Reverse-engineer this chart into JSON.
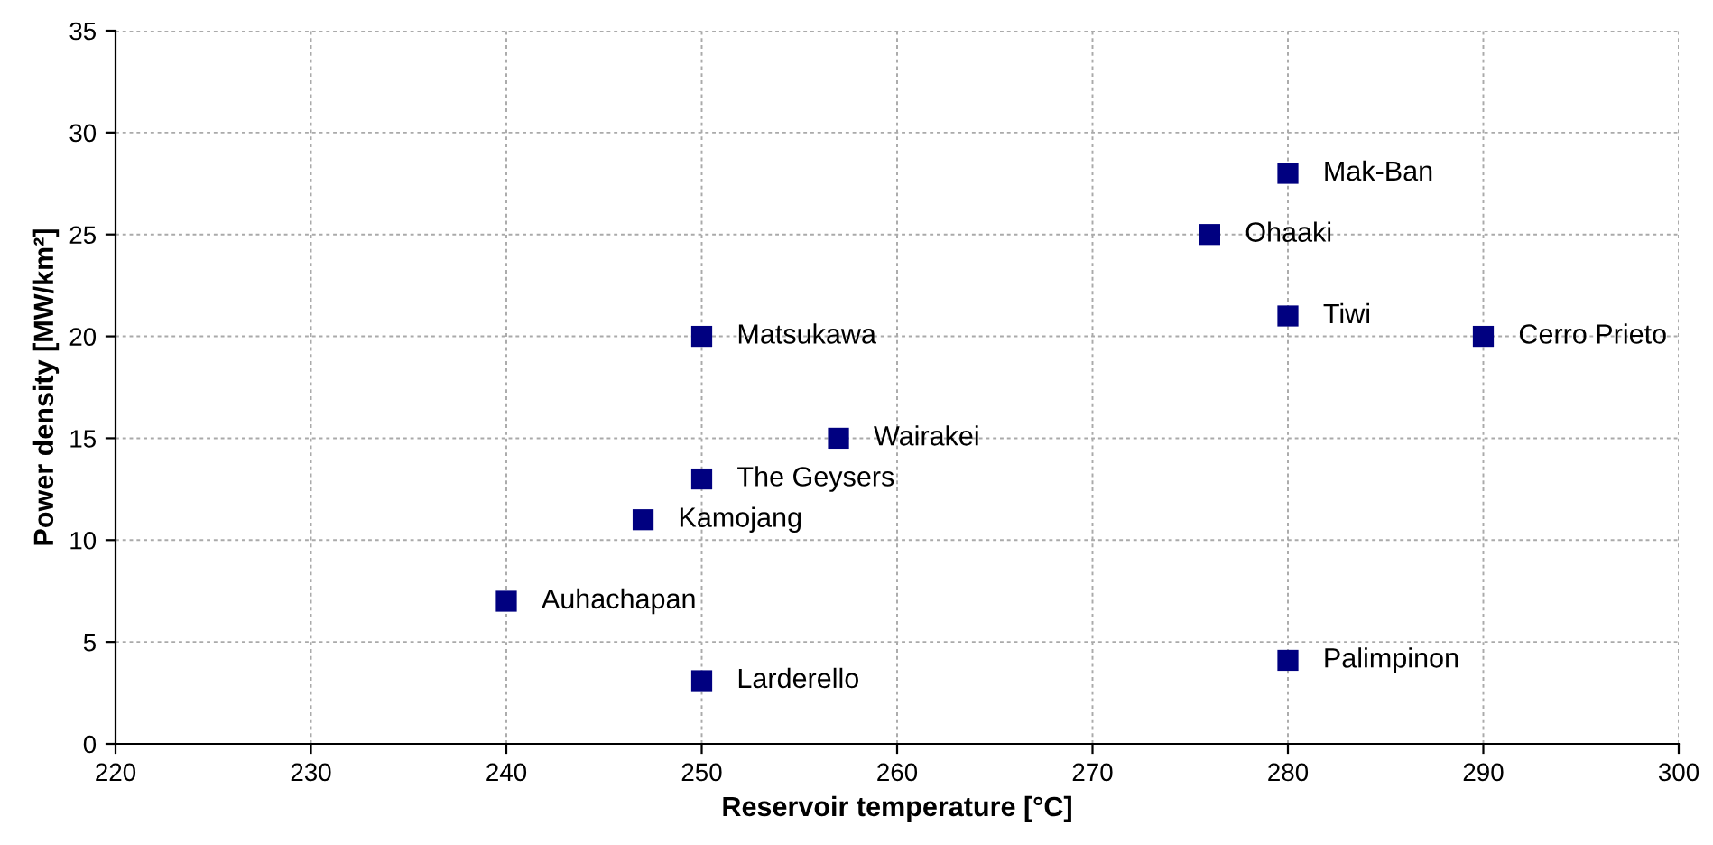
{
  "chart_data": {
    "type": "scatter",
    "xlabel": "Reservoir temperature [°C]",
    "ylabel": "Power density [MW/km²]",
    "series": [
      {
        "color": "#000080",
        "x": [
          280,
          276,
          280,
          290,
          250,
          257,
          250,
          247,
          240,
          250,
          280
        ],
        "values": [
          28,
          25,
          21,
          20,
          20,
          15,
          13,
          11,
          7,
          3.1,
          4.1
        ]
      }
    ],
    "annotations": [
      {
        "text": "Mak-Ban",
        "x": 280,
        "y": 28
      },
      {
        "text": "Ohaaki",
        "x": 276,
        "y": 25
      },
      {
        "text": "Tiwi",
        "x": 280,
        "y": 21
      },
      {
        "text": "Cerro Prieto",
        "x": 290,
        "y": 20
      },
      {
        "text": "Matsukawa",
        "x": 250,
        "y": 20
      },
      {
        "text": "Wairakei",
        "x": 257,
        "y": 15
      },
      {
        "text": "The Geysers",
        "x": 250,
        "y": 13
      },
      {
        "text": "Kamojang",
        "x": 247,
        "y": 11
      },
      {
        "text": "Auhachapan",
        "x": 240,
        "y": 7
      },
      {
        "text": "Larderello",
        "x": 250,
        "y": 3.1
      },
      {
        "text": "Palimpinon",
        "x": 280,
        "y": 4.1
      }
    ],
    "xlim": [
      220,
      300
    ],
    "xticks": [
      220,
      230,
      240,
      250,
      260,
      270,
      280,
      290,
      300
    ],
    "ylim": [
      0,
      35
    ],
    "yticks": [
      0,
      5,
      10,
      15,
      20,
      25,
      30,
      35
    ],
    "grid": true,
    "marker": "square"
  }
}
